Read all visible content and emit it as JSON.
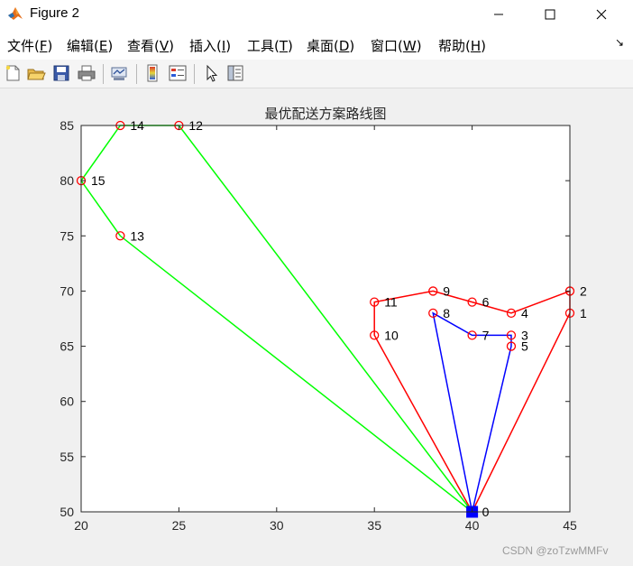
{
  "window": {
    "title": "Figure 2",
    "app_icon": "matlab-icon"
  },
  "menubar": {
    "items": [
      {
        "label": "文件(",
        "mnemonic": "F",
        "tail": ")"
      },
      {
        "label": "编辑(",
        "mnemonic": "E",
        "tail": ")"
      },
      {
        "label": "查看(",
        "mnemonic": "V",
        "tail": ")"
      },
      {
        "label": "插入(",
        "mnemonic": "I",
        "tail": ")"
      },
      {
        "label": "工具(",
        "mnemonic": "T",
        "tail": ")"
      },
      {
        "label": "桌面(",
        "mnemonic": "D",
        "tail": ")"
      },
      {
        "label": "窗口(",
        "mnemonic": "W",
        "tail": ")"
      },
      {
        "label": "帮助(",
        "mnemonic": "H",
        "tail": ")"
      }
    ],
    "overflow_arrow": "↘"
  },
  "toolbar": {
    "icons": [
      "new-figure-icon",
      "open-file-icon",
      "save-icon",
      "print-icon",
      "link-plot-icon",
      "insert-colorbar-icon",
      "insert-legend-icon",
      "edit-plot-icon",
      "property-inspector-icon"
    ]
  },
  "chart_data": {
    "type": "line",
    "title": "最优配送方案路线图",
    "xlabel": "",
    "ylabel": "",
    "xlim": [
      20,
      45
    ],
    "ylim": [
      50,
      85
    ],
    "xticks": [
      20,
      25,
      30,
      35,
      40,
      45
    ],
    "yticks": [
      50,
      55,
      60,
      65,
      70,
      75,
      80,
      85
    ],
    "grid": false,
    "depot": {
      "label": "0",
      "x": 40,
      "y": 50,
      "color": "#0000ff"
    },
    "points": [
      {
        "label": "1",
        "x": 45,
        "y": 68
      },
      {
        "label": "2",
        "x": 45,
        "y": 70
      },
      {
        "label": "3",
        "x": 42,
        "y": 66
      },
      {
        "label": "4",
        "x": 42,
        "y": 68
      },
      {
        "label": "5",
        "x": 42,
        "y": 65
      },
      {
        "label": "6",
        "x": 40,
        "y": 69
      },
      {
        "label": "7",
        "x": 40,
        "y": 66
      },
      {
        "label": "8",
        "x": 38,
        "y": 68
      },
      {
        "label": "9",
        "x": 38,
        "y": 70
      },
      {
        "label": "10",
        "x": 35,
        "y": 66
      },
      {
        "label": "11",
        "x": 35,
        "y": 69
      },
      {
        "label": "12",
        "x": 25,
        "y": 85
      },
      {
        "label": "13",
        "x": 22,
        "y": 75
      },
      {
        "label": "14",
        "x": 22,
        "y": 85
      },
      {
        "label": "15",
        "x": 20,
        "y": 80
      }
    ],
    "marker_color": "#ff0000",
    "series": [
      {
        "color": "#ff0000",
        "route": [
          "0",
          "1",
          "2",
          "4",
          "6",
          "9",
          "11",
          "10",
          "0"
        ]
      },
      {
        "color": "#0000ff",
        "route": [
          "0",
          "5",
          "3",
          "7",
          "8",
          "0"
        ]
      },
      {
        "color": "#00ff00",
        "route": [
          "0",
          "12",
          "14",
          "15",
          "13",
          "0"
        ]
      }
    ]
  },
  "watermark": "CSDN @zoTzwMMFv"
}
